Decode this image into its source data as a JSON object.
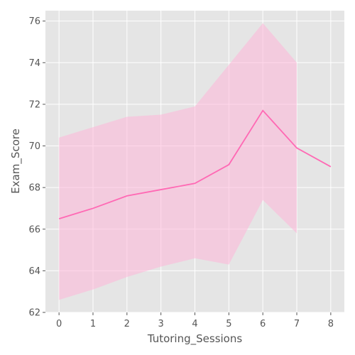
{
  "chart_data": {
    "type": "line",
    "title": "",
    "xlabel": "Tutoring_Sessions",
    "ylabel": "Exam_Score",
    "xlim": [
      -0.4,
      8.4
    ],
    "ylim": [
      62,
      76.5
    ],
    "x_ticks": [
      0,
      1,
      2,
      3,
      4,
      5,
      6,
      7,
      8
    ],
    "y_ticks": [
      62,
      64,
      66,
      68,
      70,
      72,
      74,
      76
    ],
    "grid": true,
    "legend": "none",
    "colors": {
      "background": "#e5e5e5",
      "grid": "#ffffff",
      "line": "#ff69b4",
      "band": "#ffb6d9",
      "text": "#555555"
    },
    "series": [
      {
        "x": [
          0,
          1,
          2,
          3,
          4,
          5,
          6,
          7,
          8
        ],
        "values": [
          66.5,
          67.0,
          67.6,
          67.9,
          68.2,
          69.1,
          71.7,
          69.9,
          69.0
        ],
        "band_lower": [
          62.6,
          63.1,
          63.7,
          64.2,
          64.6,
          64.3,
          67.4,
          65.8,
          null
        ],
        "band_upper": [
          70.4,
          70.9,
          71.4,
          71.5,
          71.9,
          73.9,
          75.9,
          74.0,
          null
        ]
      }
    ]
  }
}
